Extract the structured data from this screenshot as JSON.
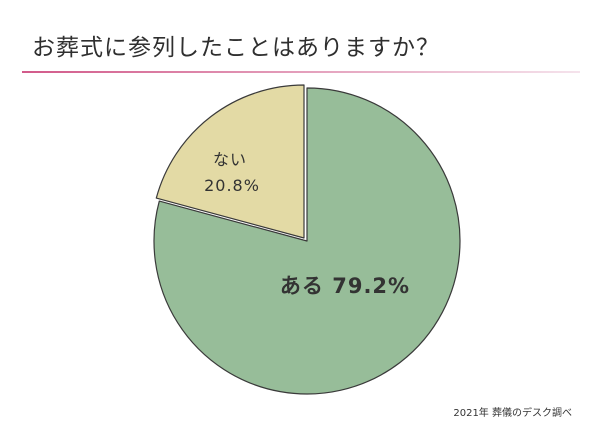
{
  "title": "お葬式に参列したことはありますか？",
  "source": "2021年 葬儀のデスク調べ",
  "colors": {
    "rule_gradient_start": "#d25a8a",
    "rule_gradient_end": "#f5e3ec",
    "slice_outline": "#3a3a3a",
    "label_text": "#333333"
  },
  "chart_data": {
    "type": "pie",
    "title": "お葬式に参列したことはありますか？",
    "start": "12 o'clock",
    "direction": "clockwise",
    "slices": [
      {
        "label": "ある",
        "value": 79.2,
        "value_label": "79.2%",
        "color": "#97bd99",
        "label_style": "bold, single line"
      },
      {
        "label": "ない",
        "value": 20.8,
        "value_label": "20.8%",
        "color": "#e3daa5",
        "label_style": "regular, two lines",
        "exploded": true
      }
    ]
  }
}
